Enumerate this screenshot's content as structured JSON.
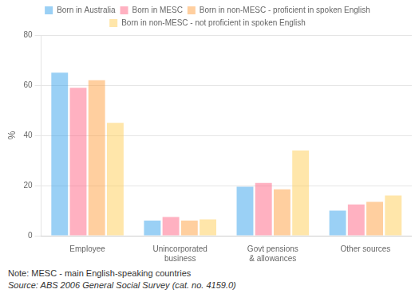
{
  "chart_data": {
    "type": "bar",
    "categories": [
      "Employee",
      "Unincorporated\nbusiness",
      "Govt pensions\n& allowances",
      "Other sources"
    ],
    "series": [
      {
        "name": "Born in Australia",
        "values": [
          65,
          6,
          19.5,
          10
        ]
      },
      {
        "name": "Born in MESC",
        "values": [
          59,
          7.5,
          21,
          12.5
        ]
      },
      {
        "name": "Born in non-MESC - proficient in spoken English",
        "values": [
          62,
          6,
          18.5,
          13.5
        ]
      },
      {
        "name": "Born in non-MESC - not proficient in spoken English",
        "values": [
          45,
          6.5,
          34,
          16
        ]
      }
    ],
    "y_label": "%",
    "ylim": [
      0,
      80
    ],
    "yticks": [
      0,
      20,
      40,
      60,
      80
    ],
    "grid": true,
    "legend": "top",
    "annotations": [
      "Note: MESC - main English-speaking countries",
      "Source: ABS 2006 General Social Survey (cat. no. 4159.0)"
    ]
  }
}
